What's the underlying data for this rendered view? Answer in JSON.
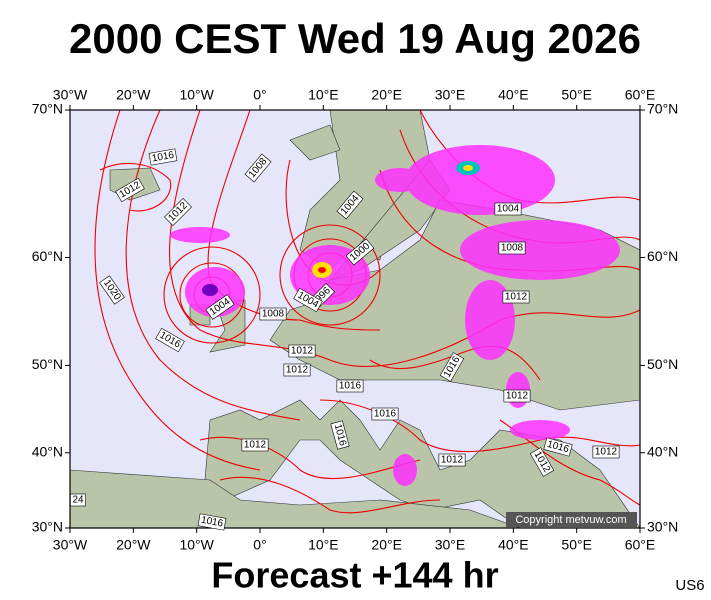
{
  "header": {
    "title": "2000 CEST Wed 19 Aug 2026"
  },
  "map": {
    "lon_ticks": [
      {
        "value": -30,
        "label": "30°W"
      },
      {
        "value": -20,
        "label": "20°W"
      },
      {
        "value": -10,
        "label": "10°W"
      },
      {
        "value": 0,
        "label": "0°"
      },
      {
        "value": 10,
        "label": "10°E"
      },
      {
        "value": 20,
        "label": "20°E"
      },
      {
        "value": 30,
        "label": "30°E"
      },
      {
        "value": 40,
        "label": "40°E"
      },
      {
        "value": 50,
        "label": "50°E"
      },
      {
        "value": 60,
        "label": "60°E"
      }
    ],
    "lat_ticks": [
      {
        "value": 70,
        "label": "70°N"
      },
      {
        "value": 60,
        "label": "60°N"
      },
      {
        "value": 50,
        "label": "50°N"
      },
      {
        "value": 40,
        "label": "40°N"
      },
      {
        "value": 30,
        "label": "30°N"
      }
    ],
    "isobar_labels": [
      "1016",
      "1012",
      "1008",
      "1012",
      "1004",
      "1000",
      "1004",
      "1008",
      "1004",
      "1020",
      "996",
      "1004",
      "1008",
      "1016",
      "1012",
      "1012",
      "1012",
      "1016",
      "1016",
      "1016",
      "1012",
      "1016",
      "1012",
      "1016",
      "1012",
      "1012",
      "1012",
      "24",
      "1016"
    ],
    "copyright": "Copyright metvuw.com"
  },
  "footer": {
    "forecast": "Forecast +144 hr",
    "code": "US6"
  }
}
